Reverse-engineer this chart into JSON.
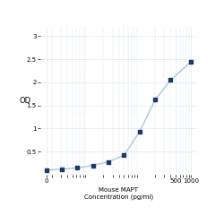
{
  "x": [
    1.5625,
    3.125,
    6.25,
    12.5,
    25,
    50,
    100,
    200,
    400,
    1000
  ],
  "y": [
    0.1,
    0.12,
    0.15,
    0.2,
    0.28,
    0.42,
    0.93,
    1.62,
    2.05,
    2.45
  ],
  "line_color": "#aec6d8",
  "marker_color": "#1b3a6b",
  "xlabel_line1": "Mouse MAPT",
  "xlabel_line2": "Concentration (pg/ml)",
  "ylabel": "OD",
  "xlim_log": [
    1.2,
    1300
  ],
  "ylim": [
    0,
    3.2
  ],
  "yticks": [
    0.5,
    1.0,
    1.5,
    2.0,
    2.5,
    3.0
  ],
  "ytick_labels": [
    "0.5",
    "1",
    "1.5",
    "2",
    "2.5",
    "3"
  ],
  "xtick_positions": [
    1.5625,
    500,
    1000
  ],
  "xtick_labels": [
    "0",
    "500",
    "1000"
  ],
  "grid_color": "#c8d8e4",
  "background_color": "#ffffff",
  "middle_xlabel": "500"
}
